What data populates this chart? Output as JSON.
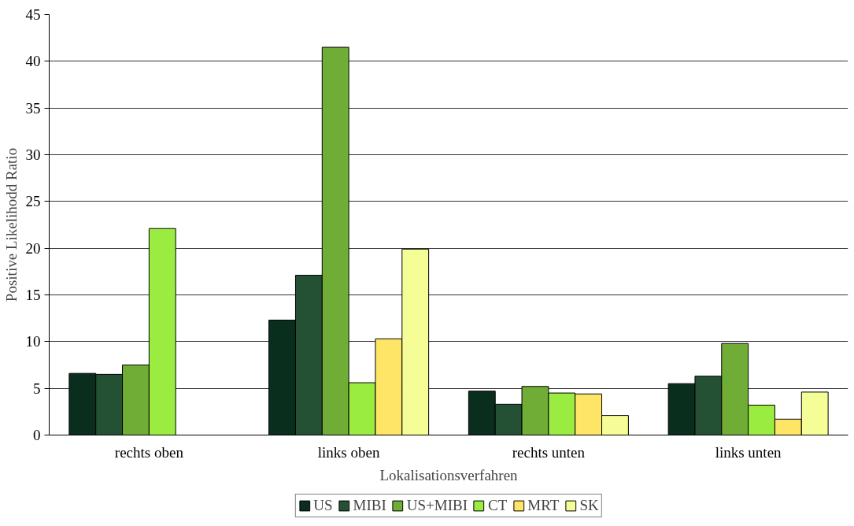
{
  "chart_data": {
    "type": "bar",
    "xlabel": "Lokalisationsverfahren",
    "ylabel": "Positive Likelihodd Ratio",
    "categories": [
      "rechts oben",
      "links oben",
      "rechts unten",
      "links unten"
    ],
    "series": [
      {
        "name": "US",
        "color": "#0a2e1e",
        "values": [
          6.6,
          12.3,
          4.7,
          5.5
        ]
      },
      {
        "name": "MIBI",
        "color": "#245133",
        "values": [
          6.5,
          17.1,
          3.3,
          6.3
        ]
      },
      {
        "name": "US+MIBI",
        "color": "#70ad37",
        "values": [
          7.5,
          41.5,
          5.2,
          9.8
        ]
      },
      {
        "name": "CT",
        "color": "#9bec41",
        "values": [
          22.1,
          5.6,
          4.5,
          3.2
        ]
      },
      {
        "name": "MRT",
        "color": "#ffe566",
        "values": [
          null,
          10.3,
          4.4,
          1.7
        ]
      },
      {
        "name": "SK",
        "color": "#f5fd96",
        "values": [
          null,
          19.9,
          2.1,
          4.6
        ]
      }
    ],
    "ylim": [
      0,
      45
    ],
    "yticks": [
      0,
      5,
      10,
      15,
      20,
      25,
      30,
      35,
      40,
      45
    ],
    "grid": "y",
    "legend": "bottom"
  }
}
